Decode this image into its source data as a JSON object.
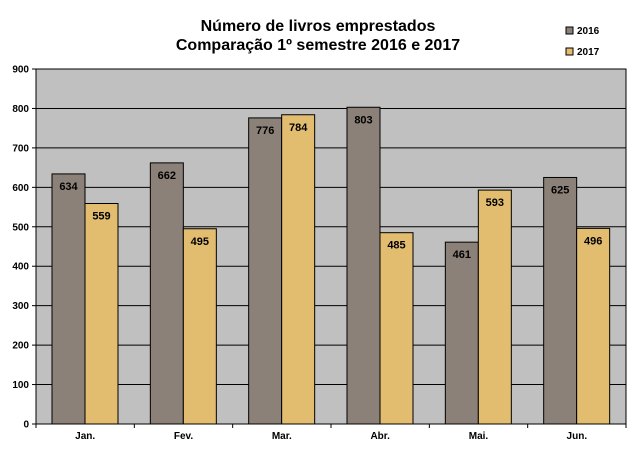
{
  "colors": {
    "background": "#ffffff",
    "plot_area": "#c0c0c0",
    "gridline": "#000000",
    "series_2016": "#8b8178",
    "series_2017": "#e2bd70",
    "bar_border": "#000000"
  },
  "chart_data": {
    "type": "bar",
    "title": "Número de livros emprestados",
    "subtitle": "Comparação 1º semestre 2016 e 2017",
    "xlabel": "",
    "ylabel": "",
    "categories": [
      "Jan.",
      "Fev.",
      "Mar.",
      "Abr.",
      "Mai.",
      "Jun."
    ],
    "series": [
      {
        "name": "2016",
        "values": [
          634,
          662,
          776,
          803,
          461,
          625
        ]
      },
      {
        "name": "2017",
        "values": [
          559,
          495,
          784,
          485,
          593,
          496
        ]
      }
    ],
    "ylim": [
      0,
      900
    ],
    "yticks": [
      0,
      100,
      200,
      300,
      400,
      500,
      600,
      700,
      800,
      900
    ],
    "grid": true,
    "legend": "top-right"
  }
}
